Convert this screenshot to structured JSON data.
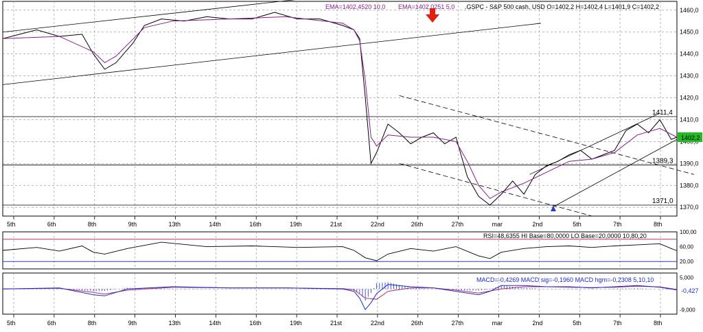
{
  "header": {
    "ema1": "EMA=1402,4520  10,0",
    "ema2": "EMA=1402,0251  5,0",
    "quote": ".GSPC - S&P 500 cash, USD O=1402,2 H=1402,4 L=1401,9 C=1402,2"
  },
  "rsi_header": "RSI=48,6355  HI Base=80,0000  LO Base=20,0000   10,80,20",
  "macd_header": "MACD=-0,4269  MACD sig=-0,1960  MACD hgm=-0,2308   5,10,10",
  "colors": {
    "price": "#000000",
    "ema": "#8b1a8b",
    "grid": "#9a9a9a",
    "rsi_hi": "#c0306a",
    "rsi_lo": "#2a3acc",
    "macd": "#1a2acc",
    "macd_sig": "#b0306a",
    "arrow": "#e02010",
    "last_price_bg": "#22bb22"
  },
  "chart_data": [
    {
      "type": "line",
      "series": [
        {
          "name": ".GSPC - S&P 500 cash",
          "x": [
            0,
            3,
            6,
            10,
            14,
            16,
            18,
            20,
            23,
            25,
            28,
            32,
            36,
            40,
            44,
            48,
            52,
            56,
            60,
            62,
            63,
            64,
            65,
            66,
            68,
            70,
            72,
            74,
            76,
            78,
            80,
            81,
            82,
            84,
            86,
            88,
            90,
            92,
            94,
            96,
            98,
            100,
            102,
            104,
            106,
            108,
            110,
            112,
            114,
            116,
            118,
            119
          ],
          "y": [
            1447,
            1449,
            1451,
            1448,
            1449,
            1440,
            1433,
            1436,
            1445,
            1453,
            1456,
            1455,
            1457,
            1456,
            1456,
            1459,
            1456,
            1456,
            1453,
            1451,
            1447,
            1420,
            1390,
            1395,
            1408,
            1404,
            1399,
            1402,
            1404,
            1399,
            1402,
            1393,
            1384,
            1375,
            1371,
            1376,
            1382,
            1376,
            1385,
            1389,
            1391,
            1394,
            1396,
            1392,
            1394,
            1396,
            1405,
            1408,
            1404,
            1410,
            1401,
            1402
          ]
        },
        {
          "name": "EMA 10",
          "x": [
            0,
            10,
            16,
            18,
            20,
            25,
            30,
            40,
            50,
            60,
            62,
            63,
            64,
            65,
            66,
            68,
            72,
            76,
            80,
            82,
            84,
            86,
            88,
            92,
            96,
            100,
            104,
            108,
            112,
            116,
            119
          ],
          "y": [
            1447,
            1448,
            1441,
            1436,
            1439,
            1452,
            1455,
            1456,
            1457,
            1454,
            1451,
            1446,
            1428,
            1402,
            1398,
            1403,
            1402,
            1402,
            1400,
            1391,
            1380,
            1374,
            1377,
            1381,
            1386,
            1391,
            1392,
            1395,
            1403,
            1406,
            1402
          ]
        }
      ],
      "x_ticks": [
        "5th",
        "6th",
        "8th",
        "9th",
        "13th",
        "14th",
        "16th",
        "19th",
        "21st",
        "22nd",
        "26th",
        "27th",
        "mar",
        "2nd",
        "5th",
        "7th",
        "8th"
      ],
      "ylim": [
        1366,
        1464
      ],
      "y_ticks": [
        "1370,0",
        "1380,0",
        "1390,0",
        "1400,0",
        "1410,0",
        "1420,0",
        "1430,0",
        "1440,0",
        "1450,0",
        "1460,0"
      ],
      "annotations": [
        {
          "label": "1411,4",
          "value": 1411.4
        },
        {
          "label": "1389,3",
          "value": 1389.3
        },
        {
          "label": "1371,0",
          "value": 1371.0
        }
      ],
      "last_price_label": "1402,2",
      "grid": true
    },
    {
      "type": "line",
      "series": [
        {
          "name": "RSI",
          "x": [
            0,
            6,
            10,
            14,
            16,
            18,
            22,
            28,
            36,
            44,
            52,
            60,
            62,
            64,
            66,
            68,
            72,
            76,
            80,
            84,
            86,
            88,
            92,
            96,
            100,
            104,
            108,
            112,
            116,
            118,
            119
          ],
          "y": [
            50,
            58,
            48,
            62,
            45,
            40,
            55,
            72,
            60,
            62,
            58,
            60,
            50,
            30,
            22,
            40,
            55,
            48,
            60,
            35,
            28,
            45,
            55,
            60,
            62,
            58,
            62,
            65,
            68,
            55,
            49
          ]
        }
      ],
      "ylim": [
        0,
        100
      ],
      "y_ticks": [
        "100,00",
        "60,00",
        "20,00"
      ],
      "lines": [
        80,
        20
      ],
      "grid": true
    },
    {
      "type": "line",
      "series": [
        {
          "name": "MACD",
          "x": [
            0,
            10,
            16,
            18,
            22,
            30,
            40,
            50,
            60,
            62,
            63,
            64,
            65,
            66,
            68,
            72,
            76,
            80,
            84,
            86,
            88,
            92,
            96,
            100,
            104,
            108,
            112,
            116,
            119
          ],
          "y": [
            0,
            0.5,
            -2.5,
            -3,
            0,
            1,
            0.5,
            0.5,
            0,
            -1,
            -4,
            -9,
            -6,
            -2,
            2,
            1,
            0.5,
            -1,
            -2.5,
            -1,
            1.5,
            1.5,
            1,
            1,
            0.5,
            1,
            1.5,
            0.8,
            -0.43
          ]
        },
        {
          "name": "MACD sig",
          "x": [
            0,
            10,
            16,
            18,
            22,
            30,
            40,
            50,
            60,
            62,
            64,
            66,
            68,
            72,
            76,
            80,
            84,
            88,
            92,
            96,
            100,
            104,
            108,
            112,
            116,
            119
          ],
          "y": [
            0,
            0.3,
            -1.5,
            -2.2,
            -0.5,
            0.8,
            0.5,
            0.5,
            0.2,
            -0.3,
            -4,
            -4.5,
            -1,
            0.5,
            0.5,
            -0.5,
            -1.8,
            0,
            1,
            1,
            0.8,
            0.6,
            0.8,
            1.2,
            0.9,
            -0.2
          ]
        }
      ],
      "ylim": [
        -11,
        7
      ],
      "y_ticks": [
        "5,000",
        "-9,000"
      ],
      "last_label": "-0,427",
      "grid": true
    }
  ]
}
